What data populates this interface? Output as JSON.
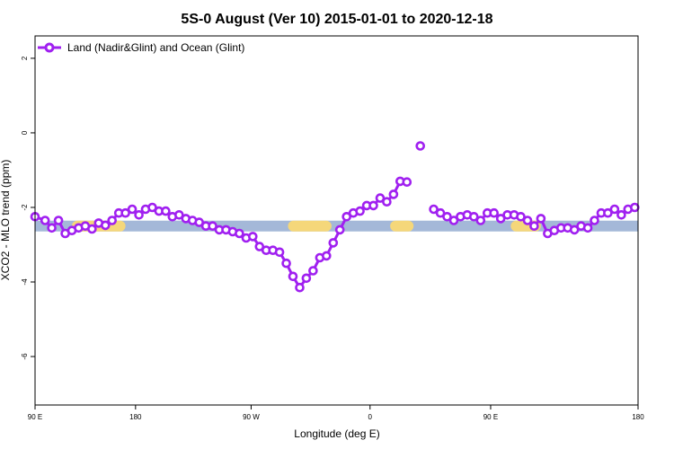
{
  "chart_data": {
    "type": "line",
    "title": "5S-0 August (Ver 10)   2015-01-01 to 2020-12-18",
    "xlabel": "Longitude (deg E)",
    "ylabel": "XCO2 - MLO trend (ppm)",
    "xlim": [
      90,
      450
    ],
    "ylim": [
      -7.3,
      2.6
    ],
    "x_ticks": [
      {
        "value": 90,
        "label": "90 E"
      },
      {
        "value": 150,
        "label": "180"
      },
      {
        "value": 219,
        "label": "90 W"
      },
      {
        "value": 290,
        "label": "0"
      },
      {
        "value": 362,
        "label": "90 E"
      },
      {
        "value": 450,
        "label": "180"
      }
    ],
    "y_ticks": [
      {
        "value": 2,
        "label": "2"
      },
      {
        "value": 0,
        "label": "0"
      },
      {
        "value": -2,
        "label": "-2"
      },
      {
        "value": -4,
        "label": "-4"
      },
      {
        "value": -6,
        "label": "-6"
      }
    ],
    "line_color": "#a020f0",
    "legend_position": "top-left",
    "band": {
      "y_center": -2.5,
      "ocean_color": "#a4b8d8",
      "land_color": "#f5d77a",
      "land_ranges": [
        [
          112,
          144
        ],
        [
          241,
          267
        ],
        [
          302,
          316
        ],
        [
          374,
          392
        ]
      ]
    },
    "series": [
      {
        "name": "Land (Nadir&Glint) and Ocean (Glint)",
        "x": [
          90,
          96,
          100,
          104,
          108,
          112,
          116,
          120,
          124,
          128,
          132,
          136,
          140,
          144,
          148,
          152,
          156,
          160,
          164,
          168,
          172,
          176,
          180,
          184,
          188,
          192,
          196,
          200,
          204,
          208,
          212,
          216,
          220,
          224,
          228,
          232,
          236,
          240,
          244,
          248,
          252,
          256,
          260,
          264,
          268,
          272,
          276,
          280,
          284,
          288,
          292,
          296,
          300,
          304,
          308,
          312,
          316,
          320,
          324,
          328,
          332,
          336,
          340,
          344,
          348,
          352,
          356,
          360,
          364,
          368,
          372,
          376,
          380,
          384,
          388,
          392,
          396,
          400,
          404,
          408,
          412,
          416,
          420,
          424,
          428,
          432,
          436,
          440,
          444,
          448
        ],
        "values": [
          -2.25,
          -2.35,
          -2.55,
          -2.35,
          -2.7,
          -2.62,
          -2.55,
          -2.5,
          -2.58,
          -2.42,
          -2.48,
          -2.35,
          -2.15,
          -2.15,
          -2.05,
          -2.2,
          -2.05,
          -2.0,
          -2.1,
          -2.1,
          -2.25,
          -2.2,
          -2.3,
          -2.35,
          -2.4,
          -2.5,
          -2.5,
          -2.6,
          -2.6,
          -2.65,
          -2.7,
          -2.82,
          -2.78,
          -3.05,
          -3.15,
          -3.15,
          -3.2,
          -3.5,
          -3.85,
          -4.15,
          -3.9,
          -3.7,
          -3.35,
          -3.3,
          -2.95,
          -2.6,
          -2.25,
          -2.15,
          -2.1,
          -1.95,
          -1.95,
          -1.75,
          -1.85,
          -1.65,
          -1.3,
          -1.32,
          null,
          -0.35,
          null,
          -2.05,
          -2.15,
          -2.25,
          -2.35,
          -2.25,
          -2.2,
          -2.25,
          -2.35,
          -2.15,
          -2.15,
          -2.3,
          -2.2,
          -2.2,
          -2.25,
          -2.35,
          -2.5,
          -2.3,
          -2.7,
          -2.62,
          -2.55,
          -2.55,
          -2.6,
          -2.5,
          -2.55,
          -2.35,
          -2.15,
          -2.15,
          -2.05,
          -2.2,
          -2.05,
          -2.0
        ]
      }
    ]
  }
}
